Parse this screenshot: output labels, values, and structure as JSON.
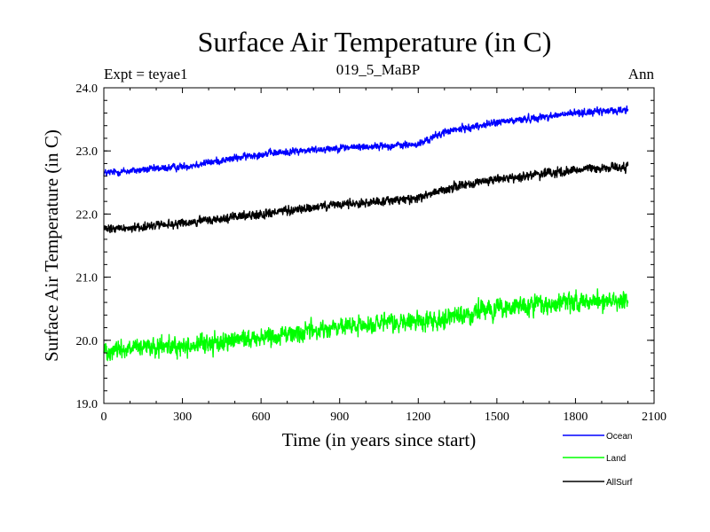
{
  "chart_data": {
    "type": "line",
    "title": "Surface Air Temperature (in C)",
    "subtitle": "019_5_MaBP",
    "left_label": "Expt = teyae1",
    "right_label": "Ann",
    "xlabel": "Time (in years since start)",
    "ylabel": "Surface Air Temperature (in C)",
    "xlim": [
      0,
      2100
    ],
    "ylim": [
      19.0,
      24.0
    ],
    "x_ticks": [
      0,
      300,
      600,
      900,
      1200,
      1500,
      1800,
      2100
    ],
    "x_tick_labels": [
      "0",
      "300",
      "600",
      "900",
      "1200",
      "1500",
      "1800",
      "2100"
    ],
    "y_ticks": [
      19.0,
      20.0,
      21.0,
      22.0,
      23.0,
      24.0
    ],
    "y_tick_labels": [
      "19.0",
      "20.0",
      "21.0",
      "22.0",
      "23.0",
      "24.0"
    ],
    "x_range": [
      0,
      2000
    ],
    "series": [
      {
        "name": "Ocean",
        "color": "#0000ff",
        "trend_x": [
          0,
          300,
          600,
          900,
          1200,
          1300,
          1500,
          1800,
          2000
        ],
        "trend_y": [
          22.65,
          22.75,
          22.95,
          23.05,
          23.1,
          23.3,
          23.45,
          23.6,
          23.65
        ],
        "noise_amp": 0.12
      },
      {
        "name": "Land",
        "color": "#00ff00",
        "trend_x": [
          0,
          300,
          600,
          900,
          1200,
          1300,
          1500,
          1800,
          2000
        ],
        "trend_y": [
          19.85,
          19.9,
          20.05,
          20.2,
          20.3,
          20.35,
          20.5,
          20.6,
          20.65
        ],
        "noise_amp": 0.32
      },
      {
        "name": "AllSurf",
        "color": "#000000",
        "trend_x": [
          0,
          300,
          600,
          900,
          1200,
          1300,
          1500,
          1800,
          2000
        ],
        "trend_y": [
          21.75,
          21.85,
          22.0,
          22.15,
          22.25,
          22.4,
          22.55,
          22.7,
          22.75
        ],
        "noise_amp": 0.15
      }
    ],
    "legend_position": "bottom-right"
  }
}
